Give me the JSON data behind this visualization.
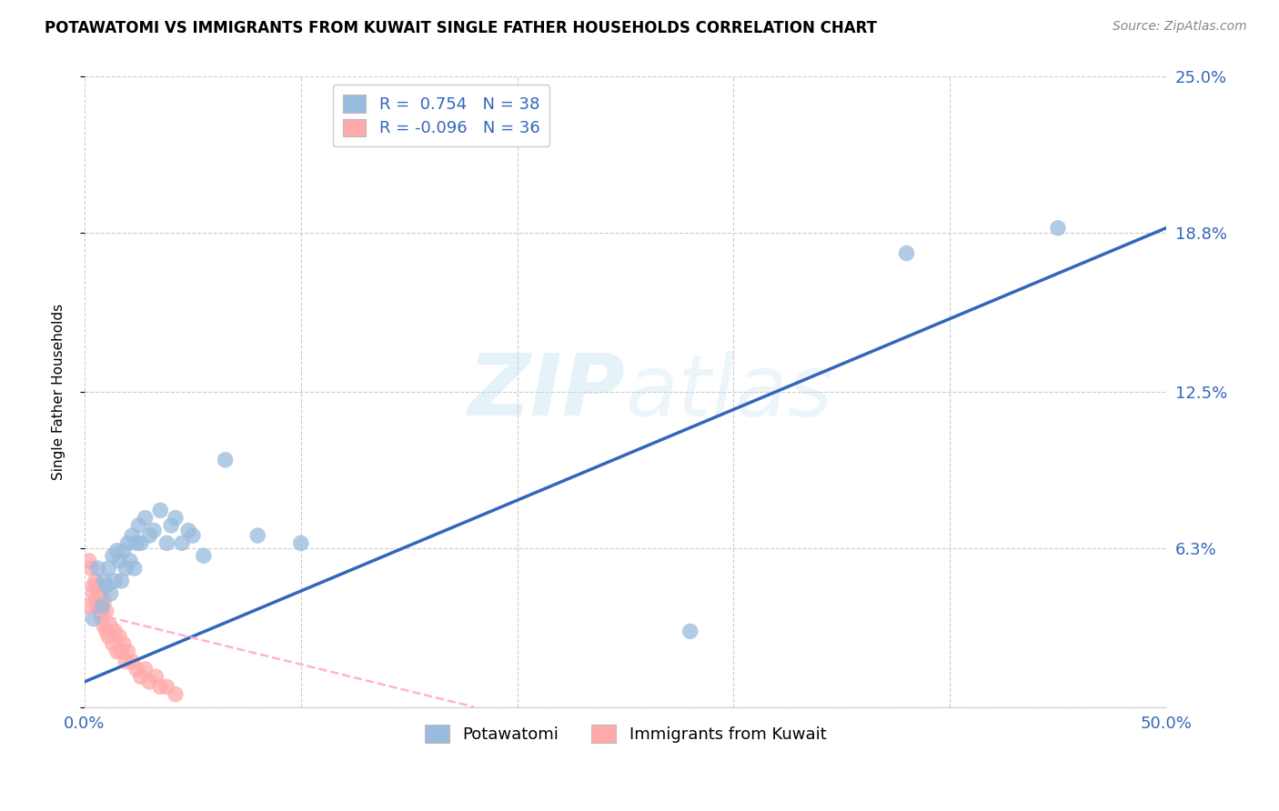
{
  "title": "POTAWATOMI VS IMMIGRANTS FROM KUWAIT SINGLE FATHER HOUSEHOLDS CORRELATION CHART",
  "source": "Source: ZipAtlas.com",
  "ylabel": "Single Father Households",
  "xlim": [
    0.0,
    0.5
  ],
  "ylim": [
    0.0,
    0.25
  ],
  "ytick_positions": [
    0.0,
    0.063,
    0.125,
    0.188,
    0.25
  ],
  "yticklabels": [
    "",
    "6.3%",
    "12.5%",
    "18.8%",
    "25.0%"
  ],
  "xtick_positions": [
    0.0,
    0.1,
    0.2,
    0.3,
    0.4,
    0.5
  ],
  "xticklabels": [
    "0.0%",
    "",
    "",
    "",
    "",
    "50.0%"
  ],
  "legend1_label": "Potawatomi",
  "legend2_label": "Immigrants from Kuwait",
  "r1": "0.754",
  "n1": "38",
  "r2": "-0.096",
  "n2": "36",
  "blue_scatter_color": "#99BBDD",
  "pink_scatter_color": "#FFAAAA",
  "blue_line_color": "#3366BB",
  "pink_line_color": "#FFAACC",
  "watermark_zip": "ZIP",
  "watermark_atlas": "atlas",
  "potawatomi_x": [
    0.004,
    0.006,
    0.008,
    0.009,
    0.01,
    0.011,
    0.012,
    0.013,
    0.014,
    0.015,
    0.016,
    0.017,
    0.018,
    0.019,
    0.02,
    0.021,
    0.022,
    0.023,
    0.024,
    0.025,
    0.026,
    0.028,
    0.03,
    0.032,
    0.035,
    0.038,
    0.04,
    0.042,
    0.045,
    0.048,
    0.05,
    0.055,
    0.065,
    0.08,
    0.1,
    0.28,
    0.38,
    0.45
  ],
  "potawatomi_y": [
    0.035,
    0.055,
    0.04,
    0.05,
    0.048,
    0.055,
    0.045,
    0.06,
    0.05,
    0.062,
    0.058,
    0.05,
    0.062,
    0.055,
    0.065,
    0.058,
    0.068,
    0.055,
    0.065,
    0.072,
    0.065,
    0.075,
    0.068,
    0.07,
    0.078,
    0.065,
    0.072,
    0.075,
    0.065,
    0.07,
    0.068,
    0.06,
    0.098,
    0.068,
    0.065,
    0.03,
    0.18,
    0.19
  ],
  "kuwait_x": [
    0.001,
    0.002,
    0.003,
    0.004,
    0.004,
    0.005,
    0.005,
    0.006,
    0.006,
    0.007,
    0.007,
    0.008,
    0.008,
    0.009,
    0.009,
    0.01,
    0.01,
    0.011,
    0.012,
    0.013,
    0.014,
    0.015,
    0.016,
    0.017,
    0.018,
    0.019,
    0.02,
    0.022,
    0.024,
    0.026,
    0.028,
    0.03,
    0.033,
    0.035,
    0.038,
    0.042
  ],
  "kuwait_y": [
    0.04,
    0.058,
    0.055,
    0.048,
    0.045,
    0.05,
    0.042,
    0.04,
    0.048,
    0.038,
    0.045,
    0.038,
    0.035,
    0.042,
    0.032,
    0.038,
    0.03,
    0.028,
    0.032,
    0.025,
    0.03,
    0.022,
    0.028,
    0.022,
    0.025,
    0.018,
    0.022,
    0.018,
    0.015,
    0.012,
    0.015,
    0.01,
    0.012,
    0.008,
    0.008,
    0.005
  ],
  "blue_line_x0": 0.0,
  "blue_line_y0": 0.01,
  "blue_line_x1": 0.5,
  "blue_line_y1": 0.19,
  "pink_line_x0": 0.0,
  "pink_line_y0": 0.038,
  "pink_line_x1": 0.18,
  "pink_line_y1": 0.0
}
